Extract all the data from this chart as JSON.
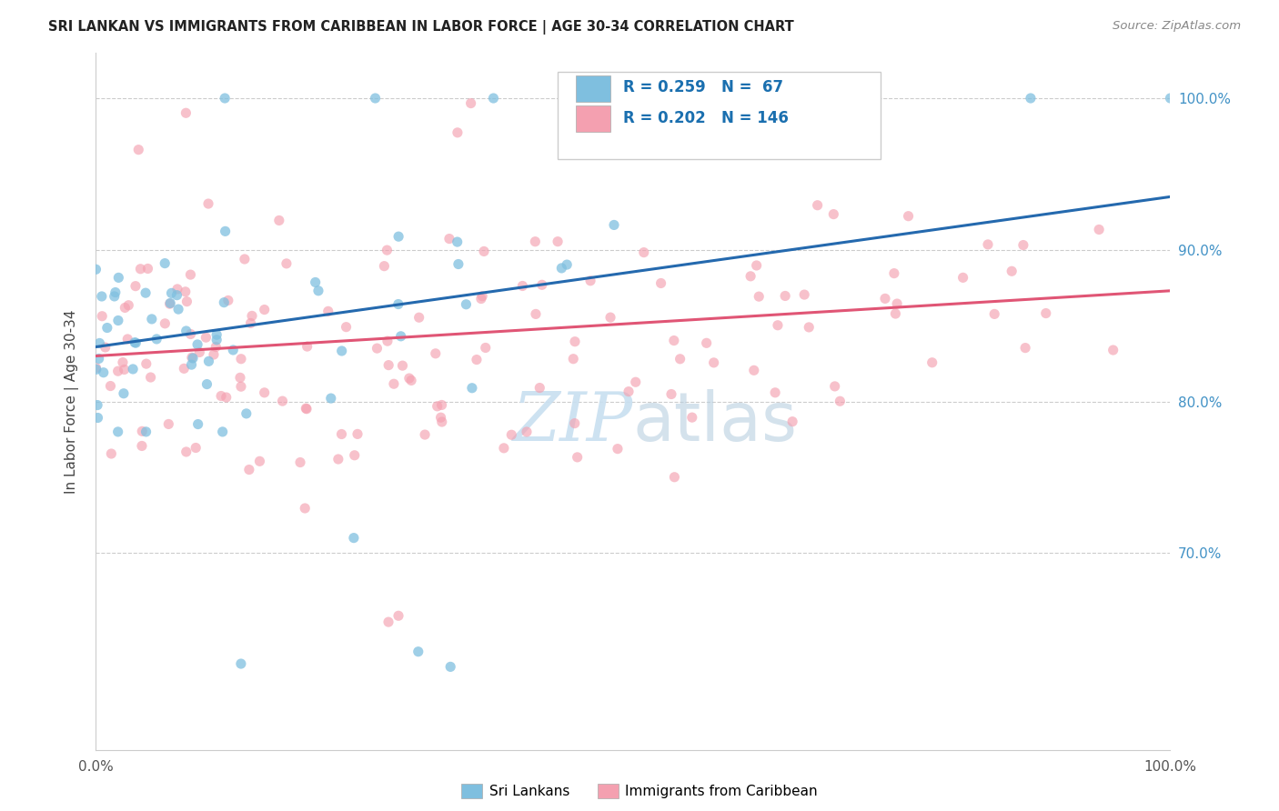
{
  "title": "SRI LANKAN VS IMMIGRANTS FROM CARIBBEAN IN LABOR FORCE | AGE 30-34 CORRELATION CHART",
  "source": "Source: ZipAtlas.com",
  "ylabel": "In Labor Force | Age 30-34",
  "legend_label1": "Sri Lankans",
  "legend_label2": "Immigrants from Caribbean",
  "r1": 0.259,
  "n1": 67,
  "r2": 0.202,
  "n2": 146,
  "color_blue": "#7fbfdf",
  "color_pink": "#f4a0b0",
  "color_blue_line": "#2469ae",
  "color_pink_line": "#e05575",
  "watermark_color": "#c8dff0",
  "ylim_min": 0.57,
  "ylim_max": 1.03,
  "xlim_min": 0.0,
  "xlim_max": 1.0,
  "yticks": [
    0.7,
    0.8,
    0.9,
    1.0
  ],
  "ytick_labels": [
    "70.0%",
    "80.0%",
    "90.0%",
    "100.0%"
  ],
  "blue_line_x0": 0.0,
  "blue_line_y0": 0.836,
  "blue_line_x1": 1.0,
  "blue_line_y1": 0.935,
  "pink_line_x0": 0.0,
  "pink_line_y0": 0.83,
  "pink_line_x1": 1.0,
  "pink_line_y1": 0.873
}
